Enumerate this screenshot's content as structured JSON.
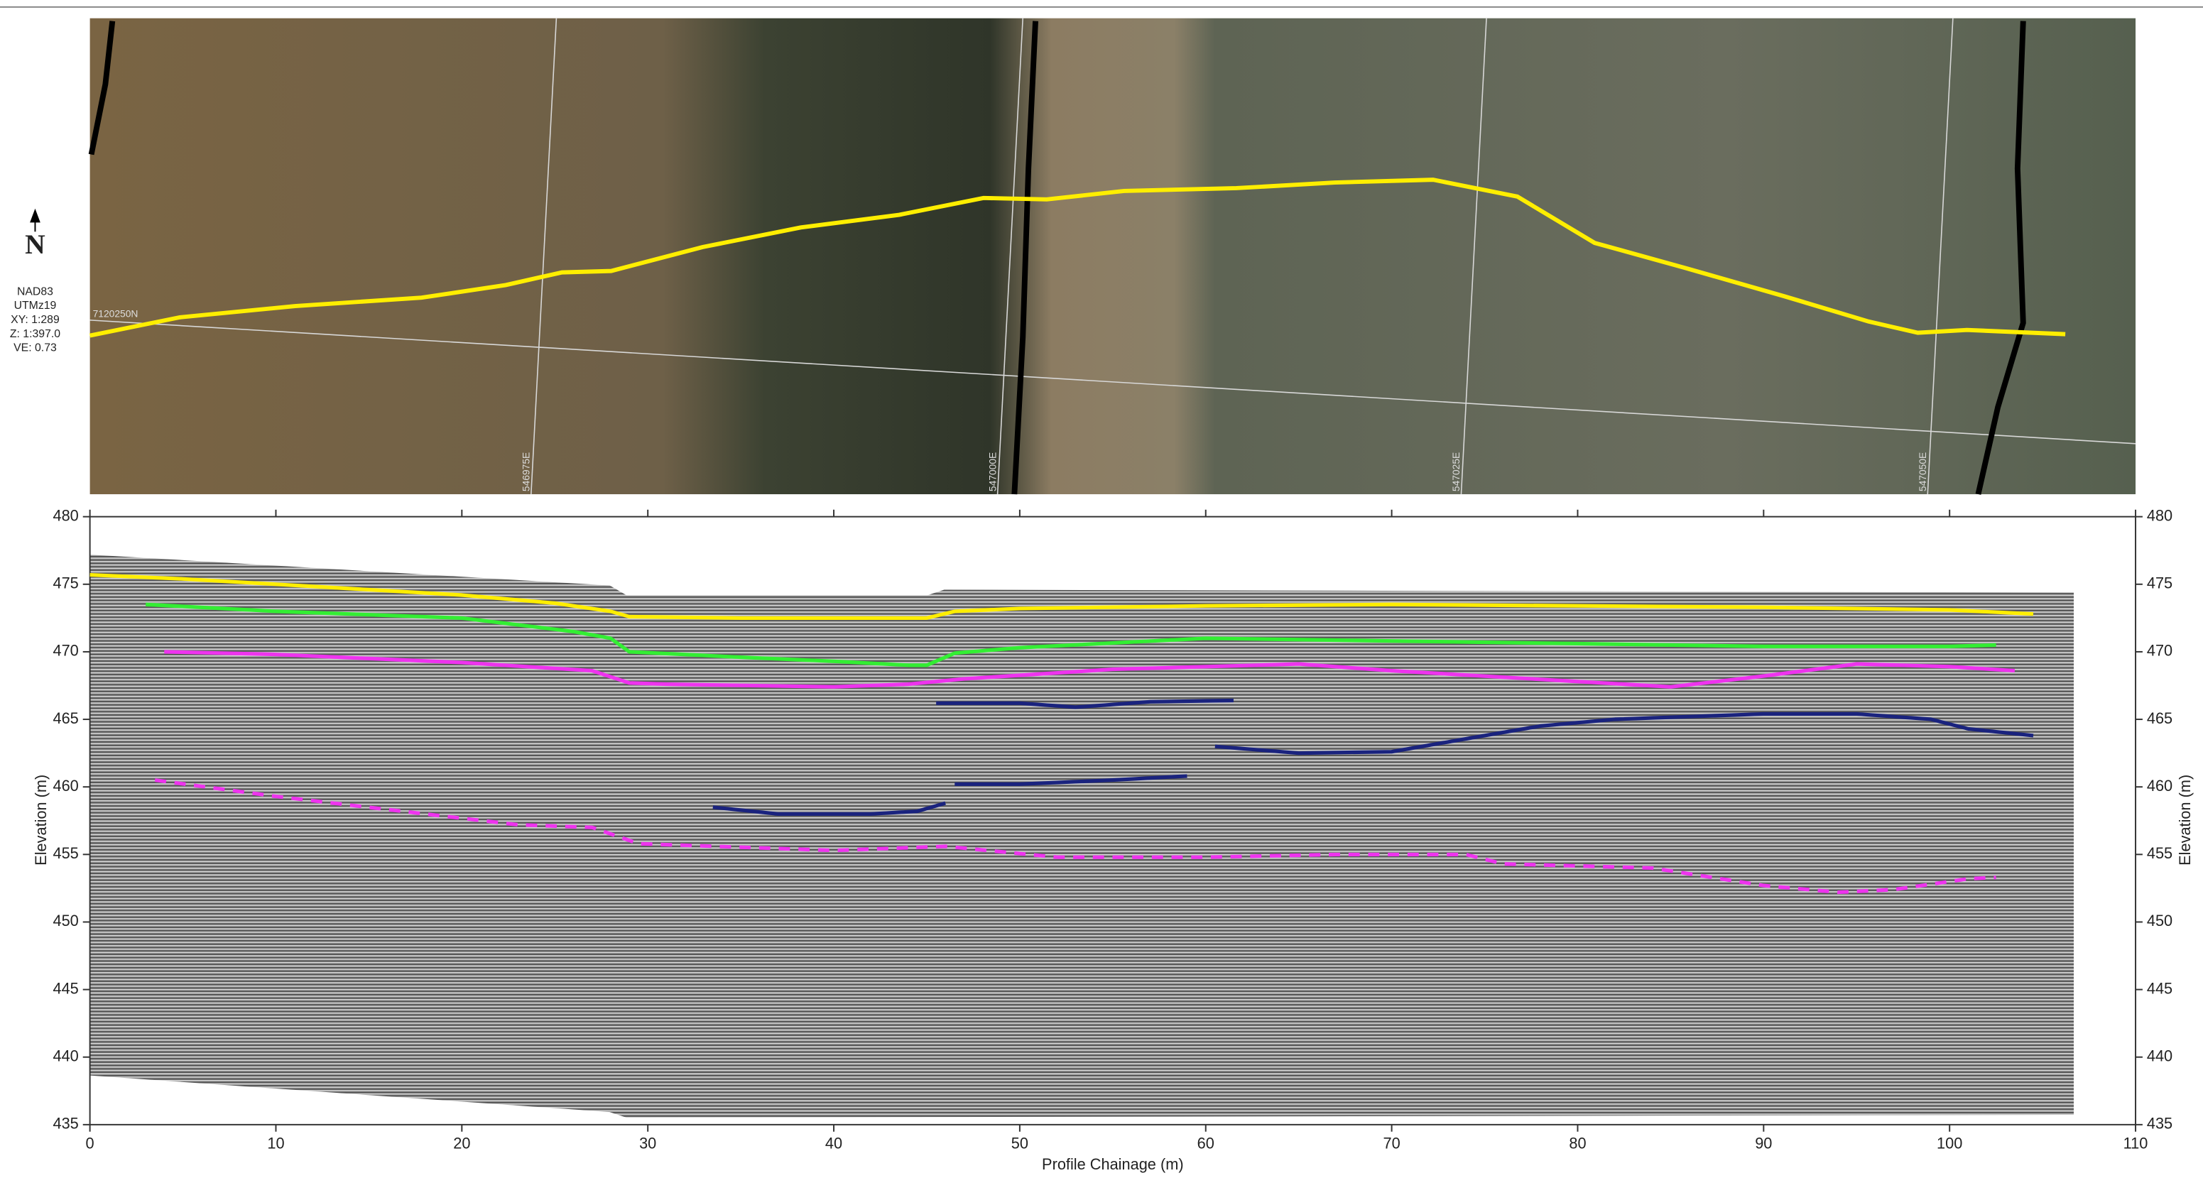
{
  "map_panel": {
    "north": "N",
    "datum": "NAD83",
    "zone": "UTMz19",
    "xy_scale": "XY: 1:289",
    "z_scale": "Z: 1:397.0",
    "ve": "VE: 0.73",
    "grid_labels": [
      "7120250N",
      "546975E",
      "547000E",
      "547025E",
      "547050E"
    ]
  },
  "chart_data": {
    "type": "line",
    "x_label": "Profile Chainage (m)",
    "y_label": "Elevation (m)",
    "xlim": [
      0,
      110
    ],
    "xticks": [
      0,
      10,
      20,
      30,
      40,
      50,
      60,
      70,
      80,
      90,
      100,
      110
    ],
    "ylim": [
      435,
      480
    ],
    "yticks": [
      435,
      440,
      445,
      450,
      455,
      460,
      465,
      470,
      475,
      480
    ],
    "series": [
      {
        "color": "#ffee00",
        "x": [
          0,
          5,
          10,
          15,
          20,
          25,
          28,
          29,
          35,
          40,
          45,
          46.5,
          50,
          60,
          70,
          80,
          90,
          100,
          104.5
        ],
        "values": [
          475.7,
          475.4,
          475,
          474.6,
          474.2,
          473.6,
          473,
          472.6,
          472.5,
          472.5,
          472.5,
          473,
          473.2,
          473.4,
          473.5,
          473.4,
          473.3,
          473.1,
          472.8
        ]
      },
      {
        "color": "#33ee33",
        "x": [
          3,
          10,
          20,
          26,
          28,
          29,
          35,
          40,
          44,
          45,
          46.5,
          50,
          60,
          70,
          80,
          90,
          100,
          102.5
        ],
        "values": [
          473.5,
          473,
          472.5,
          471.5,
          471,
          470,
          469.6,
          469.3,
          469,
          469,
          469.9,
          470.3,
          471,
          470.8,
          470.6,
          470.4,
          470.4,
          470.5
        ]
      },
      {
        "color": "#ee33ee",
        "x": [
          4,
          10,
          20,
          27,
          29,
          31,
          40,
          44,
          47,
          55,
          65,
          70,
          80,
          85,
          90,
          95,
          100,
          103.5
        ],
        "values": [
          470,
          469.8,
          469.2,
          468.6,
          467.7,
          467.6,
          467.4,
          467.6,
          468,
          468.7,
          469.1,
          468.6,
          467.8,
          467.4,
          468.2,
          469.1,
          468.9,
          468.6
        ]
      },
      {
        "color": "#1a237e",
        "x": [
          33.5,
          37,
          42,
          44.5,
          46
        ],
        "values": [
          458.5,
          458,
          458,
          458.2,
          458.8
        ]
      },
      {
        "color": "#1a237e",
        "x": [
          46.5,
          50,
          55,
          59
        ],
        "values": [
          460.2,
          460.2,
          460.5,
          460.8
        ]
      },
      {
        "color": "#1a237e",
        "x": [
          45.5,
          50,
          53,
          57,
          61.5
        ],
        "values": [
          466.2,
          466.2,
          465.9,
          466.3,
          466.4
        ]
      },
      {
        "color": "#1a237e",
        "x": [
          60.5,
          65,
          70,
          75,
          78,
          82,
          90,
          95,
          99,
          101,
          104.5
        ],
        "values": [
          463,
          462.5,
          462.6,
          463.8,
          464.5,
          465,
          465.4,
          465.4,
          465,
          464.3,
          463.8
        ]
      },
      {
        "color": "#ee33ee",
        "dashed": true,
        "x": [
          3.5,
          10,
          18,
          23,
          27,
          29.5,
          40,
          46,
          52,
          60,
          67,
          74,
          76,
          84,
          90,
          94,
          97,
          101,
          102.5
        ],
        "values": [
          460.5,
          459.3,
          458,
          457.2,
          457,
          455.8,
          455.3,
          455.6,
          454.8,
          454.8,
          455,
          455,
          454.3,
          454,
          452.7,
          452.2,
          452.4,
          453.2,
          453.3
        ]
      }
    ]
  }
}
